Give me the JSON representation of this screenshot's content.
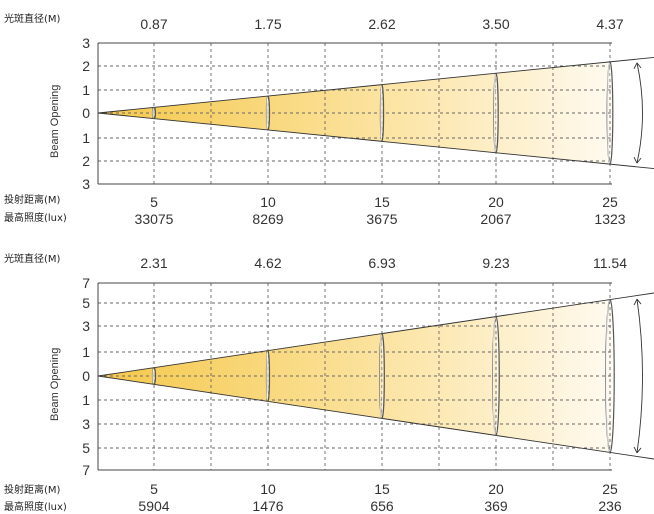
{
  "labels": {
    "spot_diameter": "光斑直径(M)",
    "throw_distance": "投射距离(M)",
    "max_illuminance": "最高照度(lux)",
    "beam_opening": "Beam Opening"
  },
  "colors": {
    "cone_start": "#f5c84a",
    "cone_end": "#fffaf0",
    "grid": "#666666"
  },
  "panels": [
    {
      "diameters": [
        "0.87",
        "1.75",
        "2.62",
        "3.50",
        "4.37"
      ],
      "distances": [
        "5",
        "10",
        "15",
        "20",
        "25"
      ],
      "illuminance": [
        "33075",
        "8269",
        "3675",
        "2067",
        "1323"
      ],
      "y_ticks": [
        "3",
        "2",
        "1",
        "0",
        "1",
        "2",
        "3"
      ],
      "y_max": 3,
      "beam_half_at_max_distance": 2.185
    },
    {
      "diameters": [
        "2.31",
        "4.62",
        "6.93",
        "9.23",
        "11.54"
      ],
      "distances": [
        "5",
        "10",
        "15",
        "20",
        "25"
      ],
      "illuminance": [
        "5904",
        "1476",
        "656",
        "369",
        "236"
      ],
      "y_ticks": [
        "7",
        "5",
        "3",
        "1",
        "0",
        "1",
        "3",
        "5",
        "7"
      ],
      "y_max": 7,
      "beam_half_at_max_distance": 5.77
    }
  ]
}
